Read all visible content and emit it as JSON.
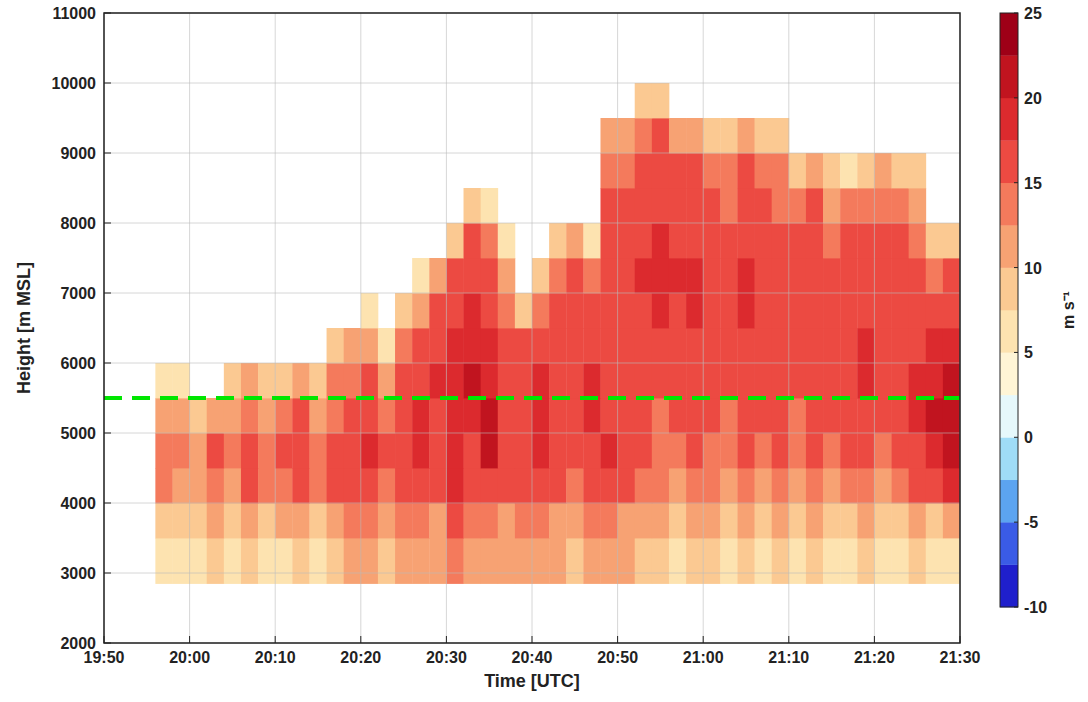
{
  "chart_data": {
    "type": "heatmap",
    "x_label": "Time [UTC]",
    "y_label": "Height [m MSL]",
    "xlim": [
      1190,
      1290
    ],
    "ylim": [
      2000,
      11000
    ],
    "xticks": [
      {
        "value": 1190,
        "label": "19:50"
      },
      {
        "value": 1200,
        "label": "20:00"
      },
      {
        "value": 1210,
        "label": "20:10"
      },
      {
        "value": 1220,
        "label": "20:20"
      },
      {
        "value": 1230,
        "label": "20:30"
      },
      {
        "value": 1240,
        "label": "20:40"
      },
      {
        "value": 1250,
        "label": "20:50"
      },
      {
        "value": 1260,
        "label": "21:00"
      },
      {
        "value": 1270,
        "label": "21:10"
      },
      {
        "value": 1280,
        "label": "21:20"
      },
      {
        "value": 1290,
        "label": "21:30"
      }
    ],
    "yticks": [
      2000,
      3000,
      4000,
      5000,
      6000,
      7000,
      8000,
      9000,
      10000,
      11000
    ],
    "grid": true,
    "x_edges": [
      1196,
      1198,
      1200,
      1202,
      1204,
      1206,
      1208,
      1210,
      1212,
      1214,
      1216,
      1218,
      1220,
      1222,
      1224,
      1226,
      1228,
      1230,
      1232,
      1234,
      1236,
      1238,
      1240,
      1242,
      1244,
      1246,
      1248,
      1250,
      1252,
      1254,
      1256,
      1258,
      1260,
      1262,
      1264,
      1266,
      1268,
      1270,
      1272,
      1274,
      1276,
      1278,
      1280,
      1282,
      1284,
      1286,
      1288,
      1290
    ],
    "y_edges": [
      2850,
      3500,
      4000,
      4500,
      5000,
      5500,
      6000,
      6500,
      7000,
      7500,
      8000,
      8500,
      9000,
      9500,
      10000
    ],
    "cells": [
      [
        7,
        6,
        7,
        8,
        7,
        8,
        6,
        7,
        9,
        7,
        8,
        10,
        12,
        9,
        11,
        12,
        10,
        13,
        11,
        12,
        10,
        11,
        12,
        10,
        9,
        11,
        12,
        10,
        9,
        8,
        7,
        9,
        8,
        7,
        8,
        7,
        9,
        7,
        8,
        6,
        7,
        8,
        6,
        7,
        8,
        6,
        5
      ],
      [
        8,
        9,
        8,
        10,
        9,
        11,
        8,
        10,
        12,
        9,
        11,
        13,
        14,
        11,
        13,
        14,
        12,
        15,
        13,
        14,
        12,
        13,
        14,
        12,
        11,
        13,
        14,
        12,
        11,
        10,
        9,
        11,
        10,
        9,
        11,
        9,
        10,
        9,
        10,
        8,
        9,
        10,
        8,
        9,
        10,
        9,
        11
      ],
      [
        13,
        12,
        11,
        14,
        12,
        15,
        13,
        14,
        16,
        13,
        15,
        16,
        17,
        14,
        16,
        17,
        15,
        18,
        16,
        17,
        15,
        16,
        17,
        15,
        14,
        16,
        17,
        15,
        14,
        13,
        12,
        14,
        13,
        12,
        14,
        12,
        13,
        12,
        14,
        12,
        13,
        14,
        12,
        13,
        15,
        16,
        18
      ],
      [
        14,
        13,
        12,
        15,
        13,
        16,
        14,
        15,
        17,
        14,
        16,
        17,
        18,
        15,
        17,
        18,
        16,
        19,
        17,
        20,
        16,
        17,
        18,
        16,
        15,
        17,
        18,
        16,
        15,
        14,
        13,
        15,
        14,
        13,
        15,
        14,
        15,
        13,
        15,
        14,
        15,
        16,
        14,
        15,
        17,
        19,
        21
      ],
      [
        11,
        10,
        8,
        12,
        11,
        14,
        12,
        13,
        15,
        12,
        14,
        16,
        17,
        14,
        16,
        18,
        17,
        19,
        18,
        21,
        16,
        17,
        18,
        17,
        16,
        18,
        17,
        16,
        15,
        14,
        15,
        16,
        15,
        14,
        16,
        15,
        16,
        14,
        16,
        15,
        16,
        17,
        15,
        16,
        18,
        20,
        21
      ],
      [
        7,
        6,
        null,
        null,
        8,
        10,
        9,
        9,
        11,
        8,
        13,
        14,
        15,
        12,
        15,
        17,
        18,
        19,
        20,
        19,
        16,
        17,
        18,
        16,
        17,
        18,
        16,
        15,
        16,
        17,
        16,
        17,
        16,
        15,
        17,
        16,
        17,
        15,
        17,
        16,
        17,
        18,
        16,
        17,
        18,
        19,
        20
      ],
      [
        null,
        null,
        null,
        null,
        null,
        null,
        null,
        null,
        null,
        null,
        9,
        11,
        12,
        7,
        13,
        15,
        17,
        18,
        19,
        18,
        15,
        16,
        17,
        15,
        16,
        17,
        16,
        15,
        16,
        17,
        16,
        17,
        17,
        15,
        17,
        16,
        17,
        15,
        17,
        16,
        17,
        18,
        16,
        17,
        17,
        18,
        19
      ],
      [
        null,
        null,
        null,
        null,
        null,
        null,
        null,
        null,
        null,
        null,
        null,
        null,
        6,
        null,
        9,
        12,
        15,
        17,
        18,
        17,
        14,
        8,
        14,
        15,
        16,
        16,
        17,
        16,
        17,
        18,
        17,
        18,
        17,
        16,
        18,
        17,
        17,
        16,
        17,
        16,
        17,
        17,
        16,
        17,
        16,
        16,
        17
      ],
      [
        null,
        null,
        null,
        null,
        null,
        null,
        null,
        null,
        null,
        null,
        null,
        null,
        null,
        null,
        null,
        7,
        10,
        15,
        17,
        16,
        12,
        null,
        9,
        13,
        15,
        14,
        17,
        17,
        18,
        19,
        18,
        18,
        17,
        16,
        18,
        17,
        16,
        16,
        17,
        16,
        16,
        17,
        16,
        16,
        15,
        14,
        15
      ],
      [
        null,
        null,
        null,
        null,
        null,
        null,
        null,
        null,
        null,
        null,
        null,
        null,
        null,
        null,
        null,
        null,
        null,
        9,
        15,
        14,
        7,
        null,
        null,
        8,
        10,
        7,
        16,
        16,
        17,
        18,
        17,
        17,
        16,
        15,
        17,
        16,
        15,
        15,
        16,
        14,
        15,
        16,
        15,
        15,
        13,
        8,
        9
      ],
      [
        null,
        null,
        null,
        null,
        null,
        null,
        null,
        null,
        null,
        null,
        null,
        null,
        null,
        null,
        null,
        null,
        null,
        null,
        9,
        7,
        null,
        null,
        null,
        null,
        null,
        null,
        15,
        15,
        16,
        17,
        16,
        16,
        15,
        14,
        16,
        15,
        14,
        14,
        15,
        12,
        13,
        13,
        14,
        14,
        11,
        null,
        null
      ],
      [
        null,
        null,
        null,
        null,
        null,
        null,
        null,
        null,
        null,
        null,
        null,
        null,
        null,
        null,
        null,
        null,
        null,
        null,
        null,
        null,
        null,
        null,
        null,
        null,
        null,
        null,
        14,
        14,
        15,
        16,
        15,
        15,
        14,
        13,
        15,
        14,
        13,
        9,
        11,
        8,
        7,
        8,
        10,
        9,
        8,
        null,
        null
      ],
      [
        null,
        null,
        null,
        null,
        null,
        null,
        null,
        null,
        null,
        null,
        null,
        null,
        null,
        null,
        null,
        null,
        null,
        null,
        null,
        null,
        null,
        null,
        null,
        null,
        null,
        null,
        10,
        12,
        14,
        15,
        11,
        10,
        9,
        8,
        11,
        9,
        8,
        null,
        null,
        null,
        null,
        null,
        null,
        null,
        null,
        null,
        null
      ],
      [
        null,
        null,
        null,
        null,
        null,
        null,
        null,
        null,
        null,
        null,
        null,
        null,
        null,
        null,
        null,
        null,
        null,
        null,
        null,
        null,
        null,
        null,
        null,
        null,
        null,
        null,
        null,
        null,
        9,
        8,
        null,
        null,
        null,
        null,
        null,
        null,
        null,
        null,
        null,
        null,
        null,
        null,
        null,
        null,
        null,
        null,
        null
      ]
    ],
    "colorbar": {
      "label": "m s⁻¹",
      "range": [
        -10,
        25
      ],
      "ticks": [
        -10,
        -5,
        0,
        5,
        10,
        15,
        20,
        25
      ],
      "colors": [
        "#1f1fcc",
        "#3a5be6",
        "#5ca4f0",
        "#9fdcf7",
        "#e6f8fb",
        "#fff5d6",
        "#fde3b0",
        "#fbc992",
        "#f7a273",
        "#f47a5c",
        "#ec4a42",
        "#dc2a2e",
        "#c1141f",
        "#9e0017"
      ]
    },
    "reference_line": {
      "value": 5500,
      "color": "#00e600",
      "line_style": "dashed"
    }
  }
}
